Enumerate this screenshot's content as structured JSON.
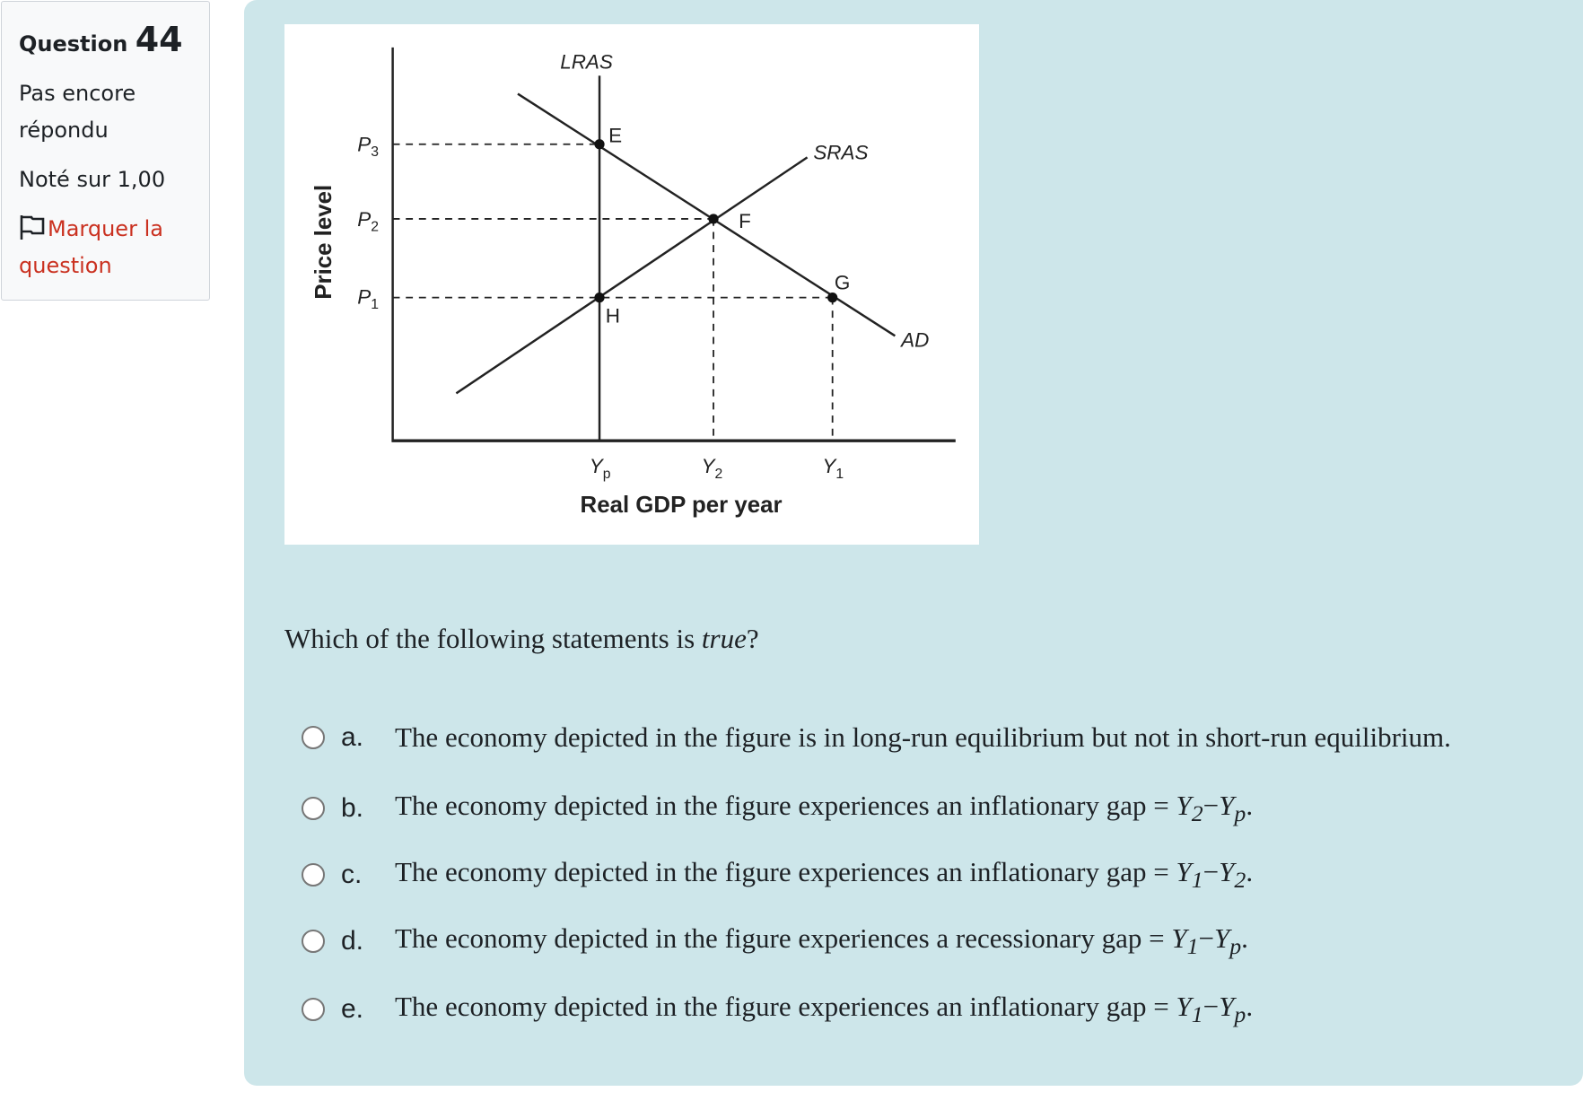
{
  "info": {
    "question_label": "Question",
    "question_number": "44",
    "state": "Pas encore répondu",
    "grade": "Noté sur 1,00",
    "flag_label": "Marquer la question",
    "flag_color": "#ca3120"
  },
  "figure": {
    "y_axis_label": "Price level",
    "x_axis_label": "Real GDP per year",
    "curves": {
      "lras": "LRAS",
      "sras": "SRAS",
      "ad": "AD"
    },
    "points": {
      "e": "E",
      "f": "F",
      "g": "G",
      "h": "H"
    },
    "price_ticks": {
      "p3": "P",
      "p3_sub": "3",
      "p2": "P",
      "p2_sub": "2",
      "p1": "P",
      "p1_sub": "1"
    },
    "gdp_ticks": {
      "yp": "Y",
      "yp_sub": "p",
      "y2": "Y",
      "y2_sub": "2",
      "y1": "Y",
      "y1_sub": "1"
    }
  },
  "question": {
    "text": "Which of the following statements is ",
    "emph": "true",
    "end": "?"
  },
  "options": [
    {
      "letter": "a.",
      "text": "The economy depicted in the figure is in long-run equilibrium but not in short-run equilibrium.",
      "a": "",
      "as": "",
      "b": "",
      "bs": "",
      "end": ""
    },
    {
      "letter": "b.",
      "text": "The economy depicted in the figure experiences an inflationary gap = ",
      "a": "Y",
      "as": "2",
      "b": "Y",
      "bs": "p",
      "end": "."
    },
    {
      "letter": "c.",
      "text": "The economy depicted in the figure experiences an inflationary gap = ",
      "a": "Y",
      "as": "1",
      "b": "Y",
      "bs": "2",
      "end": "."
    },
    {
      "letter": "d.",
      "text": "The economy depicted in the figure experiences a recessionary gap = ",
      "a": "Y",
      "as": "1",
      "b": "Y",
      "bs": "p",
      "end": "."
    },
    {
      "letter": "e.",
      "text": "The economy depicted in the figure experiences an inflationary gap = ",
      "a": "Y",
      "as": "1",
      "b": "Y",
      "bs": "p",
      "end": "."
    }
  ],
  "colors": {
    "panel_bg": "#cde6ea",
    "info_bg": "#f8f9fa"
  }
}
